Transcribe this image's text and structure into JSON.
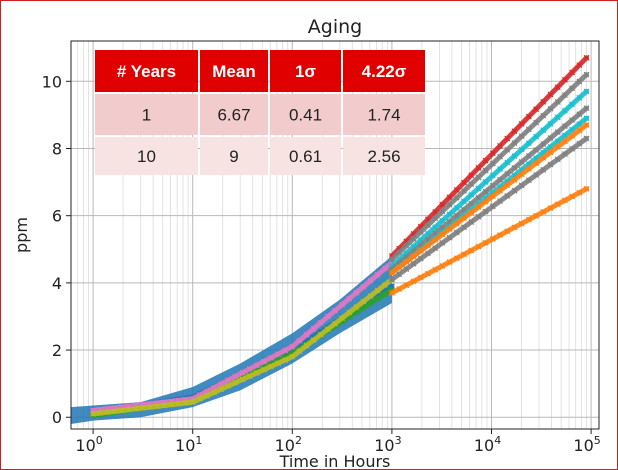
{
  "chart_data": {
    "type": "scatter",
    "title": "Aging",
    "xlabel": "Time in Hours",
    "ylabel": "ppm",
    "xscale": "log",
    "xlim": [
      0.6,
      120000
    ],
    "ylim": [
      -0.35,
      11.2
    ],
    "grid": "major and minor",
    "xticks": [
      1,
      10,
      100,
      1000,
      10000,
      100000
    ],
    "xtick_labels": [
      {
        "base": "10",
        "exp": "0"
      },
      {
        "base": "10",
        "exp": "1"
      },
      {
        "base": "10",
        "exp": "2"
      },
      {
        "base": "10",
        "exp": "3"
      },
      {
        "base": "10",
        "exp": "4"
      },
      {
        "base": "10",
        "exp": "5"
      }
    ],
    "yticks": [
      0,
      2,
      4,
      6,
      8,
      10
    ],
    "ytick_labels": [
      "0",
      "2",
      "4",
      "6",
      "8",
      "10"
    ],
    "measured_range": [
      {
        "x": 0.6,
        "low": -0.2,
        "high": 0.3
      },
      {
        "x": 1,
        "low": -0.1,
        "high": 0.35
      },
      {
        "x": 3,
        "low": 0.0,
        "high": 0.45
      },
      {
        "x": 10,
        "low": 0.3,
        "high": 0.9
      },
      {
        "x": 30,
        "low": 0.8,
        "high": 1.6
      },
      {
        "x": 100,
        "low": 1.6,
        "high": 2.5
      },
      {
        "x": 300,
        "low": 2.5,
        "high": 3.5
      },
      {
        "x": 1000,
        "low": 3.4,
        "high": 4.8
      }
    ],
    "series": [
      {
        "color": "#1f77b4",
        "points": [
          [
            1,
            0.15
          ],
          [
            10,
            0.6
          ],
          [
            100,
            2.0
          ],
          [
            1000,
            3.9
          ]
        ]
      },
      {
        "color": "#2ca02c",
        "points": [
          [
            1,
            0.05
          ],
          [
            10,
            0.5
          ],
          [
            100,
            1.9
          ],
          [
            1000,
            3.8
          ]
        ]
      },
      {
        "color": "#e377c2",
        "points": [
          [
            1,
            0.2
          ],
          [
            10,
            0.55
          ],
          [
            100,
            2.1
          ],
          [
            1000,
            4.6
          ]
        ]
      },
      {
        "color": "#bcbd22",
        "points": [
          [
            1,
            0.1
          ],
          [
            10,
            0.45
          ],
          [
            100,
            1.8
          ],
          [
            1000,
            4.1
          ]
        ]
      },
      {
        "color": "#d62728",
        "points": [
          [
            1000,
            4.8
          ],
          [
            90000,
            10.7
          ]
        ]
      },
      {
        "color": "#7f7f7f",
        "points": [
          [
            1000,
            4.7
          ],
          [
            90000,
            10.2
          ]
        ]
      },
      {
        "color": "#17becf",
        "points": [
          [
            1000,
            4.5
          ],
          [
            90000,
            9.7
          ]
        ]
      },
      {
        "color": "#7f7f7f",
        "points": [
          [
            1000,
            4.4
          ],
          [
            90000,
            9.2
          ]
        ]
      },
      {
        "color": "#17becf",
        "points": [
          [
            1000,
            4.3
          ],
          [
            90000,
            8.9
          ]
        ]
      },
      {
        "color": "#ff7f0e",
        "points": [
          [
            1000,
            4.3
          ],
          [
            90000,
            8.7
          ]
        ]
      },
      {
        "color": "#7f7f7f",
        "points": [
          [
            1000,
            4.1
          ],
          [
            90000,
            8.3
          ]
        ]
      },
      {
        "color": "#ff7f0e",
        "points": [
          [
            1000,
            3.7
          ],
          [
            90000,
            6.8
          ]
        ]
      }
    ]
  },
  "table": {
    "headers": [
      "# Years",
      "Mean",
      "1σ",
      "4.22σ"
    ],
    "rows": [
      [
        "1",
        "6.67",
        "0.41",
        "1.74"
      ],
      [
        "10",
        "9",
        "0.61",
        "2.56"
      ]
    ],
    "header_color": "#e00000"
  }
}
